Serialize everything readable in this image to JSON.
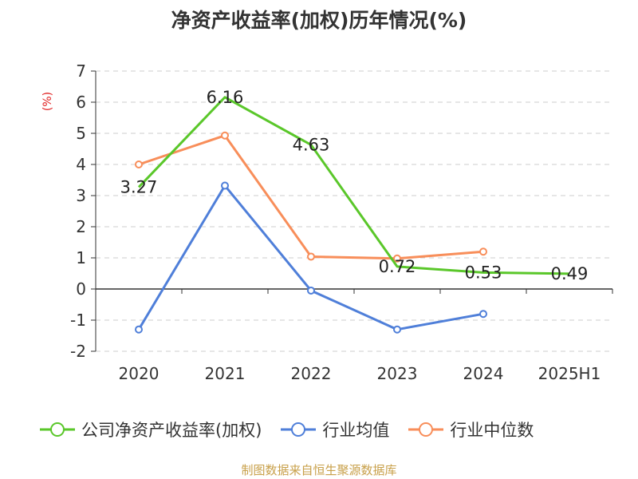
{
  "chart_data": {
    "type": "line",
    "title": "净资产收益率(加权)历年情况(%)",
    "ylabel": "(%)",
    "ylim": [
      -2,
      7
    ],
    "yticks": [
      -2,
      -1,
      0,
      1,
      2,
      3,
      4,
      5,
      6,
      7
    ],
    "categories": [
      "2020",
      "2021",
      "2022",
      "2023",
      "2024",
      "2025H1"
    ],
    "grid": true,
    "legend_position": "bottom",
    "series": [
      {
        "name": "公司净资产收益率(加权)",
        "color": "#5ac72a",
        "values": [
          3.27,
          6.16,
          4.63,
          0.72,
          0.53,
          0.49
        ],
        "labels": [
          "3.27",
          "6.16",
          "4.63",
          "0.72",
          "0.53",
          "0.49"
        ]
      },
      {
        "name": "行业均值",
        "color": "#4f7fd9",
        "values": [
          -1.3,
          3.32,
          -0.05,
          -1.3,
          -0.8,
          null
        ]
      },
      {
        "name": "行业中位数",
        "color": "#f88e5a",
        "values": [
          4.0,
          4.93,
          1.04,
          0.98,
          1.2,
          null
        ]
      }
    ]
  },
  "source_note": "制图数据来自恒生聚源数据库"
}
